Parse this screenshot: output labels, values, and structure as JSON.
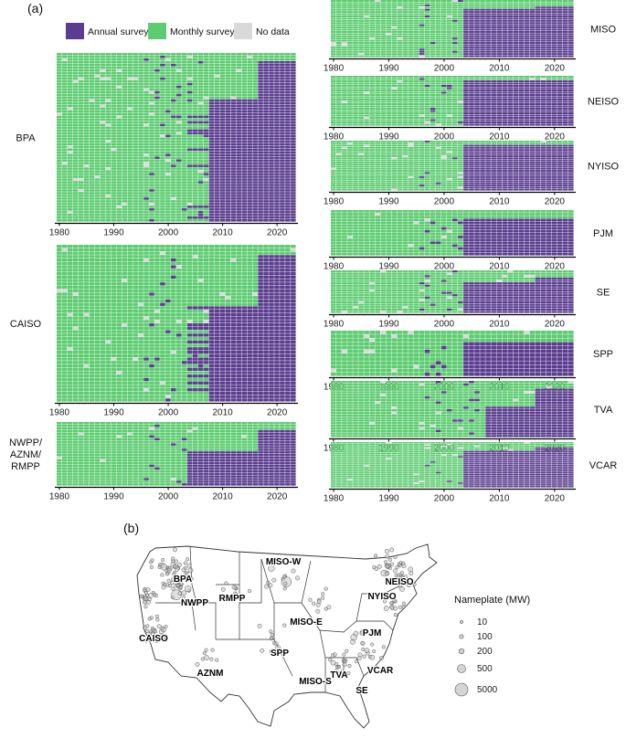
{
  "panel_a_label": "(a)",
  "panel_b_label": "(b)",
  "chart_data": {
    "type": "heatmap",
    "title": "",
    "xlabel": "",
    "ylabel": "",
    "x_range": [
      1980,
      2023
    ],
    "x_ticks": [
      "1980",
      "1990",
      "2000",
      "2010",
      "2020"
    ],
    "legend": {
      "placement": "top",
      "items": [
        {
          "key": "annual",
          "label": "Annual survey",
          "color": "#5a3d8e"
        },
        {
          "key": "monthly",
          "label": "Monthly survey",
          "color": "#5dcc71"
        },
        {
          "key": "nodata",
          "label": "No data",
          "color": "#d9d9d9"
        }
      ]
    },
    "panels": [
      {
        "name": "BPA",
        "rows": 62,
        "annual_start_late": 2008,
        "annual_start_early": 2004,
        "annual_share_late": 0.72,
        "full_annual_year": 2017
      },
      {
        "name": "CAISO",
        "rows": 46,
        "annual_start_late": 2008,
        "annual_start_early": 2004,
        "annual_share_late": 0.6,
        "full_annual_year": 2017
      },
      {
        "name": "NWPP/\nAZNM/\nRMPP",
        "rows": 24,
        "annual_start_late": 2004,
        "annual_start_early": 2004,
        "annual_share_late": 0.55,
        "full_annual_year": 2017
      },
      {
        "name": "MISO",
        "rows": 26,
        "annual_start_late": 2004,
        "annual_start_early": 2004,
        "annual_share_late": 0.85,
        "full_annual_year": 2017
      },
      {
        "name": "NEISO",
        "rows": 22,
        "annual_start_late": 2004,
        "annual_start_early": 2004,
        "annual_share_late": 0.9,
        "full_annual_year": 2017
      },
      {
        "name": "NYISO",
        "rows": 24,
        "annual_start_late": 2004,
        "annual_start_early": 2004,
        "annual_share_late": 0.92,
        "full_annual_year": 2017
      },
      {
        "name": "PJM",
        "rows": 16,
        "annual_start_late": 2004,
        "annual_start_early": 2004,
        "annual_share_late": 0.8,
        "full_annual_year": 2017
      },
      {
        "name": "SE",
        "rows": 18,
        "annual_start_late": 2004,
        "annual_start_early": 2004,
        "annual_share_late": 0.7,
        "full_annual_year": 2017
      },
      {
        "name": "SPP",
        "rows": 12,
        "annual_start_late": 2004,
        "annual_start_early": 2004,
        "annual_share_late": 0.75,
        "full_annual_year": 2017
      },
      {
        "name": "TVA",
        "rows": 22,
        "annual_start_late": 2008,
        "annual_start_early": 2008,
        "annual_share_late": 0.55,
        "full_annual_year": 2017
      },
      {
        "name": "VCAR",
        "rows": 26,
        "annual_start_late": 2004,
        "annual_start_early": 2004,
        "annual_share_late": 0.8,
        "full_annual_year": 2017
      }
    ],
    "map": {
      "regions": [
        "BPA",
        "CAISO",
        "NWPP",
        "RMPP",
        "AZNM",
        "SPP",
        "MISO-W",
        "MISO-E",
        "MISO-S",
        "TVA",
        "SE",
        "VCAR",
        "PJM",
        "NYISO",
        "NEISO"
      ],
      "size_legend": {
        "title": "Nameplate (MW)",
        "entries": [
          10,
          100,
          200,
          500,
          5000
        ]
      }
    }
  }
}
